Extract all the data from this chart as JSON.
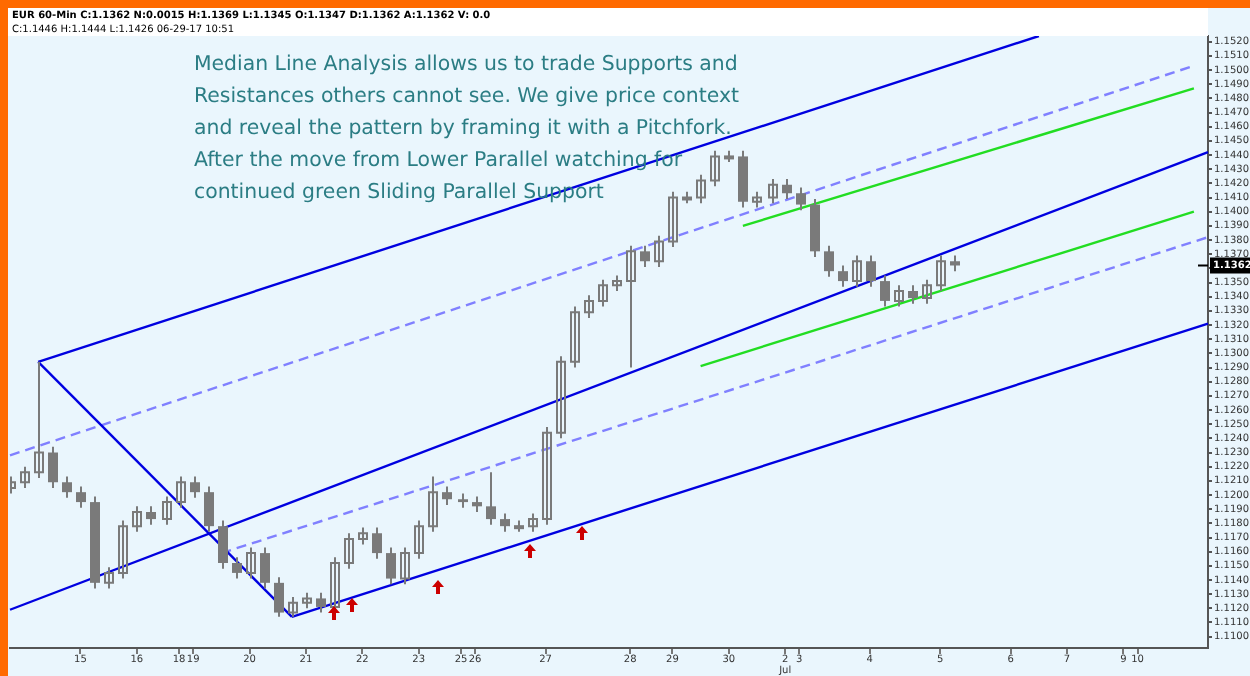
{
  "chart_data": {
    "type": "candlestick",
    "annotations": [
      "EUR 60-Min C:1.1362 N:0.0015 H:1.1369 L:1.1345 O:1.1347 D:1.1362 A:1.1362 V: 0.0",
      "C:1.1446 H:1.1444 L:1.1426 06-29-17 10:51",
      "Median Line Analysis allows us to trade Supports and\nResistances others cannot see. We give price context\nand reveal the pattern by framing it with a Pitchfork.\nAfter the move from Lower Parallel watching for\ncontinued green Sliding Parallel Support",
      {
        "text": "1.1362",
        "y": 1.1362
      }
    ],
    "color": "#7a7a7a",
    "categories": [
      null,
      null,
      null,
      null,
      null,
      "15",
      null,
      null,
      null,
      "16",
      null,
      null,
      "18",
      "19",
      null,
      null,
      null,
      "20",
      null,
      null,
      null,
      "21",
      null,
      null,
      null,
      "22",
      null,
      null,
      null,
      "23",
      null,
      null,
      "25",
      "26",
      null,
      null,
      null,
      null,
      "27",
      null,
      null,
      null,
      null,
      null,
      "28",
      null,
      null,
      "29",
      null,
      null,
      null,
      "30",
      null,
      null,
      null,
      "2\nJul",
      "3",
      null,
      null,
      null,
      null,
      "4",
      null,
      null,
      null,
      null,
      "5",
      null,
      null,
      null,
      null,
      "6",
      null,
      null,
      null,
      "7",
      null,
      null,
      null,
      "9",
      "10",
      null,
      null,
      null,
      null,
      null
    ],
    "ohlc": [
      [
        1.1205,
        1.1213,
        1.1201,
        1.1209
      ],
      [
        1.1209,
        1.122,
        1.1205,
        1.1216
      ],
      [
        1.1216,
        1.1294,
        1.1212,
        1.123
      ],
      [
        1.123,
        1.1234,
        1.1205,
        1.1209
      ],
      [
        1.1209,
        1.1213,
        1.1198,
        1.1202
      ],
      [
        1.1202,
        1.1206,
        1.1191,
        1.1195
      ],
      [
        1.1195,
        1.1199,
        1.1134,
        1.1138
      ],
      [
        1.1138,
        1.1149,
        1.1134,
        1.1145
      ],
      [
        1.1145,
        1.1182,
        1.1141,
        1.1178
      ],
      [
        1.1178,
        1.1192,
        1.1174,
        1.1188
      ],
      [
        1.1188,
        1.1192,
        1.1179,
        1.1183
      ],
      [
        1.1183,
        1.1199,
        1.1179,
        1.1195
      ],
      [
        1.1195,
        1.1213,
        1.1191,
        1.1209
      ],
      [
        1.1209,
        1.1213,
        1.1198,
        1.1202
      ],
      [
        1.1202,
        1.1206,
        1.1174,
        1.1178
      ],
      [
        1.1178,
        1.1182,
        1.1148,
        1.1152
      ],
      [
        1.1152,
        1.1156,
        1.1141,
        1.1145
      ],
      [
        1.1145,
        1.1163,
        1.1141,
        1.1159
      ],
      [
        1.1159,
        1.1163,
        1.1134,
        1.1138
      ],
      [
        1.1138,
        1.1142,
        1.1114,
        1.1117
      ],
      [
        1.1117,
        1.1128,
        1.1114,
        1.1124
      ],
      [
        1.1124,
        1.1131,
        1.112,
        1.1127
      ],
      [
        1.1127,
        1.1131,
        1.1117,
        1.1121
      ],
      [
        1.1121,
        1.1156,
        1.1117,
        1.1152
      ],
      [
        1.1152,
        1.1173,
        1.1148,
        1.1169
      ],
      [
        1.1169,
        1.1177,
        1.1165,
        1.1173
      ],
      [
        1.1173,
        1.1177,
        1.1155,
        1.1159
      ],
      [
        1.1159,
        1.1163,
        1.1137,
        1.1141
      ],
      [
        1.1141,
        1.1163,
        1.1137,
        1.1159
      ],
      [
        1.1159,
        1.1182,
        1.1155,
        1.1178
      ],
      [
        1.1178,
        1.1213,
        1.1174,
        1.1202
      ],
      [
        1.1202,
        1.1206,
        1.1193,
        1.1197
      ],
      [
        1.1197,
        1.1201,
        1.1191,
        1.1195
      ],
      [
        1.1195,
        1.1199,
        1.1188,
        1.1192
      ],
      [
        1.1192,
        1.1216,
        1.1179,
        1.1183
      ],
      [
        1.1183,
        1.1187,
        1.1174,
        1.1178
      ],
      [
        1.1178,
        1.1182,
        1.1174,
        1.1178
      ],
      [
        1.1178,
        1.1187,
        1.1174,
        1.1183
      ],
      [
        1.1183,
        1.1248,
        1.1179,
        1.1244
      ],
      [
        1.1244,
        1.1298,
        1.124,
        1.1294
      ],
      [
        1.1294,
        1.1333,
        1.129,
        1.1329
      ],
      [
        1.1329,
        1.1341,
        1.1325,
        1.1337
      ],
      [
        1.1337,
        1.1352,
        1.1333,
        1.1348
      ],
      [
        1.1348,
        1.1355,
        1.1344,
        1.1351
      ],
      [
        1.1351,
        1.1376,
        1.129,
        1.1372
      ],
      [
        1.1372,
        1.1376,
        1.1361,
        1.1365
      ],
      [
        1.1365,
        1.1383,
        1.1361,
        1.1379
      ],
      [
        1.1379,
        1.1414,
        1.1375,
        1.141
      ],
      [
        1.141,
        1.1414,
        1.1406,
        1.141
      ],
      [
        1.141,
        1.1426,
        1.1406,
        1.1422
      ],
      [
        1.1422,
        1.1443,
        1.1418,
        1.1439
      ],
      [
        1.1439,
        1.1443,
        1.1435,
        1.1439
      ],
      [
        1.1439,
        1.1443,
        1.1403,
        1.1407
      ],
      [
        1.1407,
        1.1414,
        1.1403,
        1.141
      ],
      [
        1.141,
        1.1423,
        1.1406,
        1.1419
      ],
      [
        1.1419,
        1.1423,
        1.1409,
        1.1413
      ],
      [
        1.1413,
        1.1417,
        1.1401,
        1.1405
      ],
      [
        1.1405,
        1.1409,
        1.1368,
        1.1372
      ],
      [
        1.1372,
        1.1376,
        1.1354,
        1.1358
      ],
      [
        1.1358,
        1.1362,
        1.1347,
        1.1351
      ],
      [
        1.1351,
        1.1369,
        1.1347,
        1.1365
      ],
      [
        1.1365,
        1.1369,
        1.1347,
        1.1351
      ],
      [
        1.1351,
        1.1355,
        1.1333,
        1.1337
      ],
      [
        1.1337,
        1.1348,
        1.1333,
        1.1344
      ],
      [
        1.1344,
        1.1348,
        1.1335,
        1.1339
      ],
      [
        1.1339,
        1.1352,
        1.1335,
        1.1348
      ],
      [
        1.1348,
        1.1369,
        1.1344,
        1.1365
      ],
      [
        1.1365,
        1.1369,
        1.1358,
        1.1362
      ],
      null,
      null,
      null,
      null,
      null,
      null,
      null,
      null,
      null,
      null,
      null,
      null,
      null,
      null,
      null,
      null,
      null,
      null
    ],
    "series": [
      {
        "type": "line",
        "color": "#0000e0",
        "values": [
          null,
          null,
          1.1294,
          null,
          null,
          null,
          null,
          null,
          null,
          null,
          null,
          null,
          null,
          null,
          null,
          null,
          null,
          null,
          null,
          null,
          null,
          null,
          null,
          null,
          null,
          null,
          null,
          null,
          null,
          null,
          null,
          null,
          null,
          null,
          null,
          null,
          null,
          null,
          null,
          null,
          null,
          null,
          null,
          null,
          null,
          null,
          null,
          null,
          null,
          null,
          null,
          null,
          null,
          null,
          null,
          null,
          null,
          null,
          null,
          null,
          null,
          null,
          null,
          null,
          null,
          null,
          null,
          null,
          null,
          null,
          null,
          null,
          null,
          1.1524,
          null,
          null,
          null,
          null,
          null,
          null,
          null,
          null,
          null,
          null,
          null,
          null
        ]
      },
      {
        "type": "line",
        "color": "#0000e0",
        "values": [
          1.1119,
          null,
          null,
          null,
          null,
          null,
          null,
          null,
          null,
          null,
          null,
          null,
          null,
          null,
          null,
          null,
          null,
          null,
          null,
          null,
          null,
          null,
          null,
          null,
          null,
          null,
          null,
          null,
          null,
          null,
          null,
          null,
          null,
          null,
          null,
          null,
          null,
          null,
          null,
          null,
          null,
          null,
          null,
          null,
          null,
          null,
          null,
          null,
          null,
          null,
          null,
          null,
          null,
          null,
          null,
          null,
          null,
          null,
          null,
          null,
          null,
          null,
          null,
          null,
          null,
          null,
          null,
          null,
          null,
          null,
          null,
          null,
          null,
          null,
          null,
          null,
          null,
          null,
          null,
          null,
          null,
          null,
          null,
          null,
          null,
          1.1442
        ]
      },
      {
        "type": "line",
        "color": "#0000e0",
        "values": [
          null,
          null,
          null,
          null,
          null,
          null,
          null,
          null,
          null,
          null,
          null,
          null,
          null,
          null,
          null,
          null,
          null,
          null,
          null,
          null,
          1.1114,
          null,
          null,
          null,
          null,
          null,
          null,
          null,
          null,
          null,
          null,
          null,
          null,
          null,
          null,
          null,
          null,
          null,
          null,
          null,
          null,
          null,
          null,
          null,
          null,
          null,
          null,
          null,
          null,
          null,
          null,
          null,
          null,
          null,
          null,
          null,
          null,
          null,
          null,
          null,
          null,
          null,
          null,
          null,
          null,
          null,
          null,
          null,
          null,
          null,
          null,
          null,
          null,
          null,
          null,
          null,
          null,
          null,
          null,
          null,
          null,
          null,
          null,
          null,
          null,
          1.1321
        ]
      },
      {
        "type": "line",
        "color": "#0000e0",
        "values": [
          null,
          null,
          1.1294,
          null,
          null,
          null,
          null,
          null,
          null,
          null,
          null,
          null,
          null,
          null,
          null,
          null,
          null,
          null,
          null,
          null,
          1.1114,
          null,
          null,
          null,
          null,
          null,
          null,
          null,
          null,
          null,
          null,
          null,
          null,
          null,
          null,
          null,
          null,
          null,
          null,
          null,
          null,
          null,
          null,
          null,
          null,
          null,
          null,
          null,
          null,
          null,
          null,
          null,
          null,
          null,
          null,
          null,
          null,
          null,
          null,
          null,
          null,
          null,
          null,
          null,
          null,
          null,
          null,
          null,
          null,
          null,
          null,
          null,
          null,
          null,
          null,
          null,
          null,
          null,
          null,
          null,
          null,
          null,
          null,
          null,
          null,
          null
        ]
      },
      {
        "type": "line",
        "color": "#8080ff",
        "line_style": "dashed",
        "values": [
          1.1228,
          null,
          null,
          null,
          null,
          null,
          null,
          null,
          null,
          null,
          null,
          null,
          null,
          null,
          null,
          null,
          null,
          null,
          null,
          null,
          null,
          null,
          null,
          null,
          null,
          null,
          null,
          null,
          null,
          null,
          null,
          null,
          null,
          null,
          null,
          null,
          null,
          null,
          null,
          null,
          null,
          null,
          null,
          null,
          null,
          null,
          null,
          null,
          null,
          null,
          null,
          null,
          null,
          null,
          null,
          null,
          null,
          null,
          null,
          null,
          null,
          null,
          null,
          null,
          null,
          null,
          null,
          null,
          null,
          null,
          null,
          null,
          null,
          null,
          null,
          null,
          null,
          null,
          null,
          null,
          null,
          null,
          null,
          null,
          1.1503,
          null
        ]
      },
      {
        "type": "line",
        "color": "#8080ff",
        "line_style": "dashed",
        "values": [
          null,
          null,
          null,
          null,
          null,
          null,
          null,
          null,
          null,
          null,
          null,
          null,
          null,
          null,
          null,
          1.1159,
          null,
          null,
          null,
          null,
          null,
          null,
          null,
          null,
          null,
          null,
          null,
          null,
          null,
          null,
          null,
          null,
          null,
          null,
          null,
          null,
          null,
          null,
          null,
          null,
          null,
          null,
          null,
          null,
          null,
          null,
          null,
          null,
          null,
          null,
          null,
          null,
          null,
          null,
          null,
          null,
          null,
          null,
          null,
          null,
          null,
          null,
          null,
          null,
          null,
          null,
          null,
          null,
          null,
          null,
          null,
          null,
          null,
          null,
          null,
          null,
          null,
          null,
          null,
          null,
          null,
          null,
          null,
          null,
          null,
          1.1382
        ]
      },
      {
        "type": "line",
        "color": "#22dd22",
        "values": [
          null,
          null,
          null,
          null,
          null,
          null,
          null,
          null,
          null,
          null,
          null,
          null,
          null,
          null,
          null,
          null,
          null,
          null,
          null,
          null,
          null,
          null,
          null,
          null,
          null,
          null,
          null,
          null,
          null,
          null,
          null,
          null,
          null,
          null,
          null,
          null,
          null,
          null,
          null,
          null,
          null,
          null,
          null,
          null,
          null,
          null,
          null,
          null,
          null,
          null,
          null,
          null,
          1.139,
          null,
          null,
          null,
          null,
          null,
          null,
          null,
          null,
          null,
          null,
          null,
          null,
          null,
          null,
          null,
          null,
          null,
          null,
          null,
          null,
          null,
          null,
          null,
          null,
          null,
          null,
          null,
          null,
          null,
          null,
          null,
          1.1487,
          null
        ]
      },
      {
        "type": "line",
        "color": "#22dd22",
        "values": [
          null,
          null,
          null,
          null,
          null,
          null,
          null,
          null,
          null,
          null,
          null,
          null,
          null,
          null,
          null,
          null,
          null,
          null,
          null,
          null,
          null,
          null,
          null,
          null,
          null,
          null,
          null,
          null,
          null,
          null,
          null,
          null,
          null,
          null,
          null,
          null,
          null,
          null,
          null,
          null,
          null,
          null,
          null,
          null,
          null,
          null,
          null,
          null,
          null,
          1.1291,
          null,
          null,
          null,
          null,
          null,
          null,
          null,
          null,
          null,
          null,
          null,
          null,
          null,
          null,
          null,
          null,
          null,
          null,
          null,
          null,
          null,
          null,
          null,
          null,
          null,
          null,
          null,
          null,
          null,
          null,
          null,
          null,
          null,
          null,
          1.14,
          null
        ]
      }
    ],
    "marker": "none",
    "ylim": [
      1.1092,
      1.1524
    ],
    "yticks": [
      {
        "value": 1.11,
        "label": "1.1100"
      },
      {
        "value": 1.111,
        "label": "1.1110"
      },
      {
        "value": 1.112,
        "label": "1.1120"
      },
      {
        "value": 1.113,
        "label": "1.1130"
      },
      {
        "value": 1.114,
        "label": "1.1140"
      },
      {
        "value": 1.115,
        "label": "1.1150"
      },
      {
        "value": 1.116,
        "label": "1.1160"
      },
      {
        "value": 1.117,
        "label": "1.1170"
      },
      {
        "value": 1.118,
        "label": "1.1180"
      },
      {
        "value": 1.119,
        "label": "1.1190"
      },
      {
        "value": 1.12,
        "label": "1.1200"
      },
      {
        "value": 1.121,
        "label": "1.1210"
      },
      {
        "value": 1.122,
        "label": "1.1220"
      },
      {
        "value": 1.123,
        "label": "1.1230"
      },
      {
        "value": 1.124,
        "label": "1.1240"
      },
      {
        "value": 1.125,
        "label": "1.1250"
      },
      {
        "value": 1.126,
        "label": "1.1260"
      },
      {
        "value": 1.127,
        "label": "1.1270"
      },
      {
        "value": 1.128,
        "label": "1.1280"
      },
      {
        "value": 1.129,
        "label": "1.1290"
      },
      {
        "value": 1.13,
        "label": "1.1300"
      },
      {
        "value": 1.131,
        "label": "1.1310"
      },
      {
        "value": 1.132,
        "label": "1.1320"
      },
      {
        "value": 1.133,
        "label": "1.1330"
      },
      {
        "value": 1.134,
        "label": "1.1340"
      },
      {
        "value": 1.135,
        "label": "1.1350"
      },
      {
        "value": 1.136,
        "label": null
      },
      {
        "value": 1.137,
        "label": "1.1370"
      },
      {
        "value": 1.138,
        "label": "1.1380"
      },
      {
        "value": 1.139,
        "label": "1.1390"
      },
      {
        "value": 1.14,
        "label": "1.1400"
      },
      {
        "value": 1.141,
        "label": "1.1410"
      },
      {
        "value": 1.142,
        "label": "1.1420"
      },
      {
        "value": 1.143,
        "label": "1.1430"
      },
      {
        "value": 1.144,
        "label": "1.1440"
      },
      {
        "value": 1.145,
        "label": "1.1450"
      },
      {
        "value": 1.146,
        "label": "1.1460"
      },
      {
        "value": 1.147,
        "label": "1.1470"
      },
      {
        "value": 1.148,
        "label": "1.1480"
      },
      {
        "value": 1.149,
        "label": "1.1490"
      },
      {
        "value": 1.15,
        "label": "1.1500"
      },
      {
        "value": 1.151,
        "label": "1.1510"
      },
      {
        "value": 1.152,
        "label": "1.1520"
      }
    ]
  }
}
